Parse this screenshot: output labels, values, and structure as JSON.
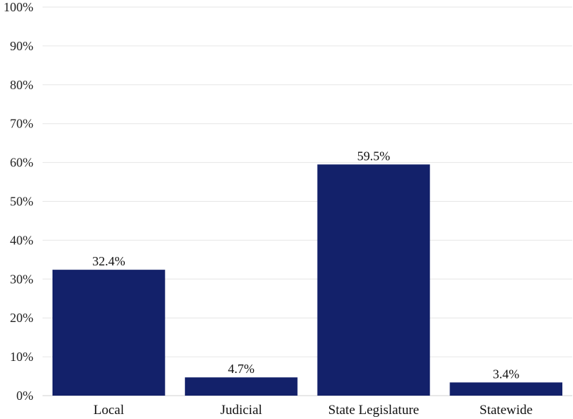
{
  "chart_data": {
    "type": "bar",
    "categories": [
      "Local",
      "Judicial",
      "State Legislature",
      "Statewide"
    ],
    "values": [
      32.4,
      4.7,
      59.5,
      3.4
    ],
    "data_labels": [
      "32.4%",
      "4.7%",
      "59.5%",
      "3.4%"
    ],
    "ylim": [
      0,
      100
    ],
    "yticks": [
      0,
      10,
      20,
      30,
      40,
      50,
      60,
      70,
      80,
      90,
      100
    ],
    "ytick_labels": [
      "0%",
      "10%",
      "20%",
      "30%",
      "40%",
      "50%",
      "60%",
      "70%",
      "80%",
      "90%",
      "100%"
    ],
    "grid": true,
    "legend": "none",
    "title": "",
    "xlabel": "",
    "ylabel": "",
    "bar_color": "#13216a"
  }
}
